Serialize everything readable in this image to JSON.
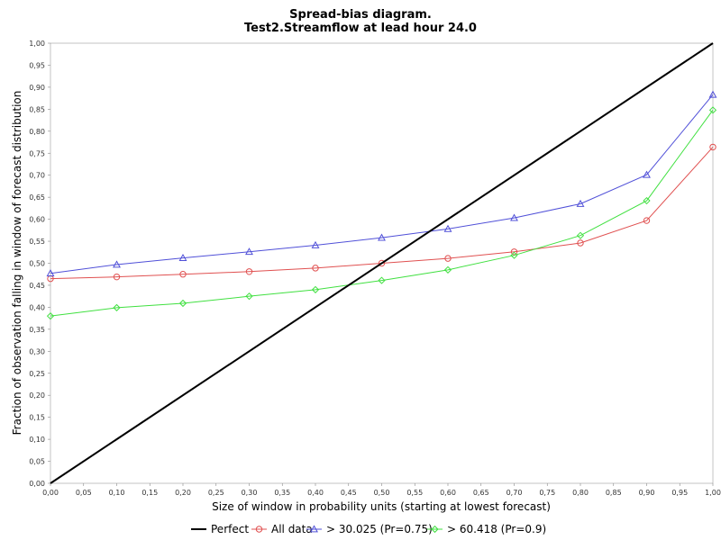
{
  "chart_data": {
    "type": "line",
    "title": "Spread-bias diagram.",
    "subtitle": "Test2.Streamflow at lead hour 24.0",
    "xlabel": "Size of window in probability units (starting at lowest forecast)",
    "ylabel": "Fraction of observation falling in window of forecast distribution",
    "xlim": [
      0,
      1
    ],
    "ylim": [
      0,
      1
    ],
    "xticks": [
      "0,00",
      "0,05",
      "0,10",
      "0,15",
      "0,20",
      "0,25",
      "0,30",
      "0,35",
      "0,40",
      "0,45",
      "0,50",
      "0,55",
      "0,60",
      "0,65",
      "0,70",
      "0,75",
      "0,80",
      "0,85",
      "0,90",
      "0,95",
      "1,00"
    ],
    "yticks": [
      "0,00",
      "0,05",
      "0,10",
      "0,15",
      "0,20",
      "0,25",
      "0,30",
      "0,35",
      "0,40",
      "0,45",
      "0,50",
      "0,55",
      "0,60",
      "0,65",
      "0,70",
      "0,75",
      "0,80",
      "0,85",
      "0,90",
      "0,95",
      "1,00"
    ],
    "grid": false,
    "legend_position": "bottom",
    "series": [
      {
        "name": "Perfect",
        "color": "#000000",
        "marker": "none",
        "x": [
          0,
          1
        ],
        "y": [
          0,
          1
        ]
      },
      {
        "name": "All data",
        "color": "#e05050",
        "marker": "circle",
        "x": [
          0,
          0.1,
          0.2,
          0.3,
          0.4,
          0.5,
          0.6,
          0.7,
          0.8,
          0.9,
          1.0
        ],
        "y": [
          0.465,
          0.469,
          0.475,
          0.481,
          0.489,
          0.5,
          0.511,
          0.526,
          0.546,
          0.597,
          0.764
        ]
      },
      {
        "name": "> 30.025 (Pr=0.75)",
        "color": "#5050d8",
        "marker": "triangle",
        "x": [
          0,
          0.1,
          0.2,
          0.3,
          0.4,
          0.5,
          0.6,
          0.7,
          0.8,
          0.9,
          1.0
        ],
        "y": [
          0.477,
          0.497,
          0.512,
          0.526,
          0.541,
          0.558,
          0.578,
          0.603,
          0.635,
          0.701,
          0.883
        ]
      },
      {
        "name": "> 60.418 (Pr=0.9)",
        "color": "#40e040",
        "marker": "diamond",
        "x": [
          0,
          0.1,
          0.2,
          0.3,
          0.4,
          0.5,
          0.6,
          0.7,
          0.8,
          0.9,
          1.0
        ],
        "y": [
          0.38,
          0.399,
          0.409,
          0.425,
          0.44,
          0.461,
          0.485,
          0.518,
          0.563,
          0.642,
          0.848
        ]
      }
    ]
  }
}
